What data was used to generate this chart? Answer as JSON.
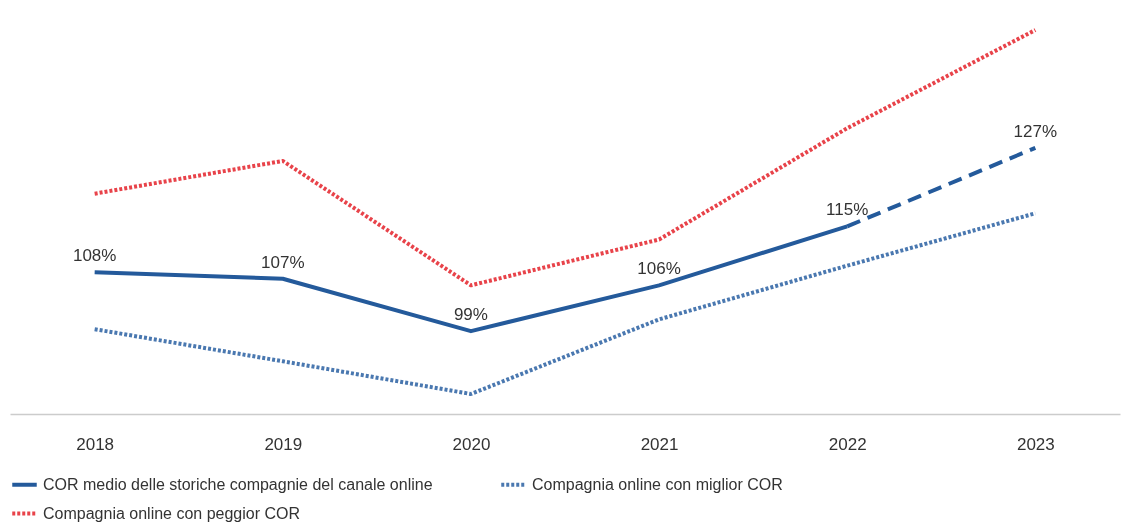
{
  "chart_data": {
    "type": "line",
    "categories": [
      "2018",
      "2019",
      "2020",
      "2021",
      "2022",
      "2023"
    ],
    "series": [
      {
        "name": "COR medio delle storiche compagnie del canale online",
        "color": "#245a9b",
        "line_style": "solid",
        "values": [
          108,
          107,
          99,
          106,
          115,
          null
        ],
        "value_labels": [
          "108%",
          "107%",
          "99%",
          "106%",
          "115%",
          null
        ]
      },
      {
        "color": "#245a9b",
        "line_style": "dashed",
        "values": [
          null,
          null,
          null,
          null,
          115,
          127
        ],
        "value_labels": [
          null,
          null,
          null,
          null,
          null,
          "127%"
        ]
      },
      {
        "name": "Compagnia online con miglior COR",
        "color": "#4a78b0",
        "line_style": "dotted",
        "values": [
          99.3,
          94.4,
          89.4,
          100.8,
          109,
          117
        ]
      },
      {
        "name": "Compagnia  online con peggior COR",
        "color": "#e8434a",
        "line_style": "dotted",
        "values": [
          120,
          125,
          106,
          113,
          130,
          145
        ]
      }
    ],
    "legend": "bottom"
  }
}
